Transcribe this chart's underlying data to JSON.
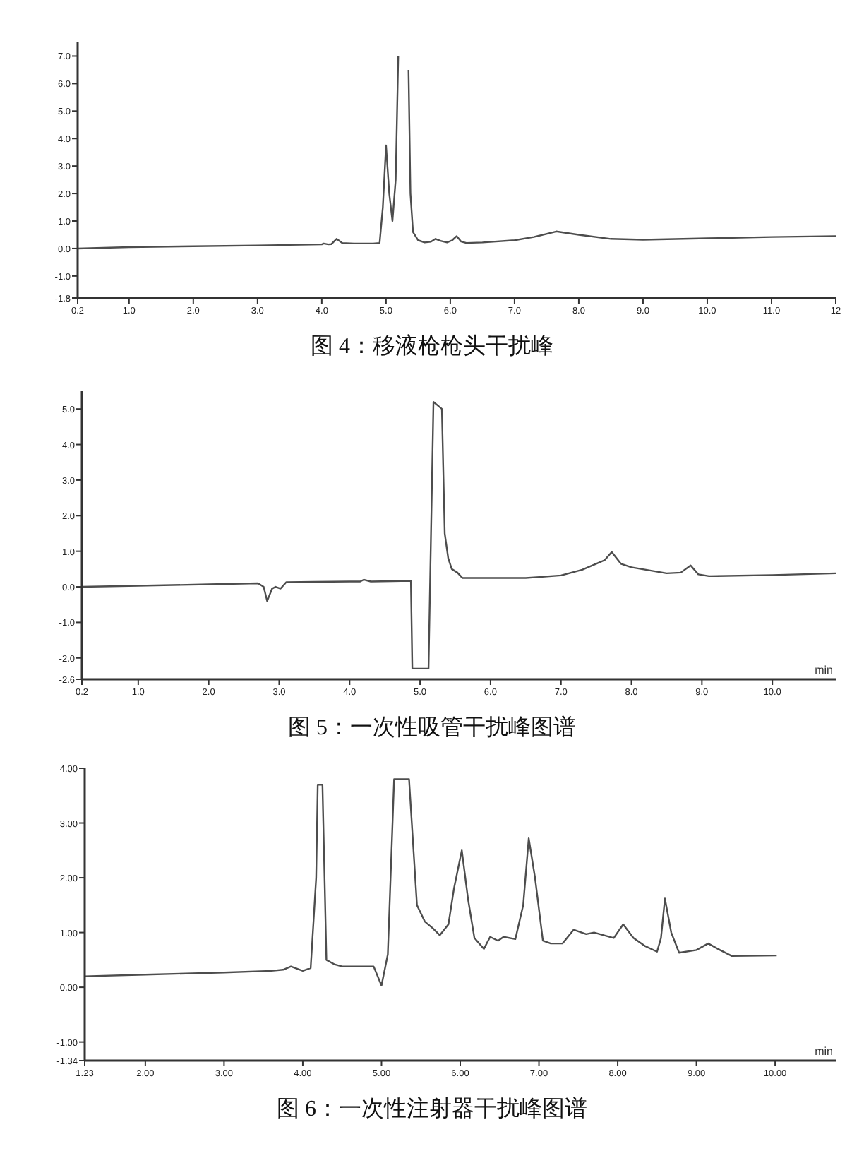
{
  "chart_data": [
    {
      "type": "line",
      "title": "图 4：移液枪枪头干扰峰",
      "xlim": [
        0.2,
        12
      ],
      "ylim": [
        -1.8,
        7.5
      ],
      "xticks": [
        0.2,
        {
          "value": 1,
          "label": "1.0"
        },
        {
          "value": 2,
          "label": "2.0"
        },
        {
          "value": 3,
          "label": "3.0"
        },
        {
          "value": 4,
          "label": "4.0"
        },
        {
          "value": 5,
          "label": "5.0"
        },
        {
          "value": 6,
          "label": "6.0"
        },
        {
          "value": 7,
          "label": "7.0"
        },
        {
          "value": 8,
          "label": "8.0"
        },
        {
          "value": 9,
          "label": "9.0"
        },
        {
          "value": 10,
          "label": "10.0"
        },
        {
          "value": 11,
          "label": "11.0"
        },
        12
      ],
      "yticks": [
        -1.8,
        {
          "value": -1,
          "label": "-1.0"
        },
        {
          "value": 0,
          "label": "0.0"
        },
        {
          "value": 1,
          "label": "1.0"
        },
        {
          "value": 2,
          "label": "2.0"
        },
        {
          "value": 3,
          "label": "3.0"
        },
        {
          "value": 4,
          "label": "4.0"
        },
        {
          "value": 5,
          "label": "5.0"
        },
        {
          "value": 6,
          "label": "6.0"
        },
        {
          "value": 7,
          "label": "7.0"
        }
      ],
      "series": [
        {
          "color": "#4d4d4d",
          "x": [
            0.2,
            1,
            2,
            3,
            4,
            4.03,
            4.1,
            4.15,
            4.23,
            4.32,
            4.5,
            4.8,
            4.9,
            4.95,
            5.0,
            5.05,
            5.1,
            5.15,
            5.19
          ],
          "values": [
            0,
            0.05,
            0.08,
            0.11,
            0.15,
            0.18,
            0.15,
            0.16,
            0.35,
            0.2,
            0.18,
            0.18,
            0.2,
            1.5,
            3.75,
            2.0,
            1.0,
            2.5,
            7.0
          ]
        },
        {
          "color": "#4d4d4d",
          "x": [
            5.35,
            5.38,
            5.42,
            5.5,
            5.6,
            5.7,
            5.77,
            5.85,
            5.95,
            6.03,
            6.1,
            6.17,
            6.25,
            6.5,
            7.0,
            7.3,
            7.65,
            8.0,
            8.5,
            9.0,
            10,
            11,
            12
          ],
          "values": [
            6.5,
            2.0,
            0.6,
            0.3,
            0.22,
            0.25,
            0.35,
            0.28,
            0.22,
            0.3,
            0.45,
            0.25,
            0.2,
            0.22,
            0.3,
            0.42,
            0.62,
            0.5,
            0.35,
            0.32,
            0.37,
            0.42,
            0.45
          ]
        }
      ]
    },
    {
      "type": "line",
      "title": "图 5：一次性吸管干扰峰图谱",
      "xlabel": "min",
      "xlim": [
        0.2,
        10.9
      ],
      "ylim": [
        -2.6,
        5.5
      ],
      "xticks": [
        0.2,
        {
          "value": 1,
          "label": "1.0"
        },
        {
          "value": 2,
          "label": "2.0"
        },
        {
          "value": 3,
          "label": "3.0"
        },
        {
          "value": 4,
          "label": "4.0"
        },
        {
          "value": 5,
          "label": "5.0"
        },
        {
          "value": 6,
          "label": "6.0"
        },
        {
          "value": 7,
          "label": "7.0"
        },
        {
          "value": 8,
          "label": "8.0"
        },
        {
          "value": 9,
          "label": "9.0"
        },
        {
          "value": 10,
          "label": "10.0"
        }
      ],
      "yticks": [
        -2.6,
        {
          "value": -2,
          "label": "-2.0"
        },
        {
          "value": -1,
          "label": "-1.0"
        },
        {
          "value": 0,
          "label": "0.0"
        },
        {
          "value": 1,
          "label": "1.0"
        },
        {
          "value": 2,
          "label": "2.0"
        },
        {
          "value": 3,
          "label": "3.0"
        },
        {
          "value": 4,
          "label": "4.0"
        },
        {
          "value": 5,
          "label": "5.0"
        }
      ],
      "x": [
        0.2,
        1,
        2,
        2.7,
        2.78,
        2.83,
        2.9,
        2.95,
        3.02,
        3.1,
        3.5,
        4.0,
        4.15,
        4.2,
        4.3,
        4.6,
        4.87,
        4.89,
        5.12,
        5.19,
        5.31,
        5.35,
        5.4,
        5.45,
        5.53,
        5.6,
        6.0,
        6.5,
        7.0,
        7.3,
        7.5,
        7.62,
        7.72,
        7.85,
        8.0,
        8.5,
        8.7,
        8.84,
        8.95,
        9.1,
        10,
        10.9
      ],
      "series": [
        {
          "color": "#4d4d4d",
          "values": [
            0,
            0.03,
            0.07,
            0.1,
            0.0,
            -0.4,
            -0.05,
            0.0,
            -0.05,
            0.13,
            0.14,
            0.15,
            0.15,
            0.2,
            0.15,
            0.16,
            0.17,
            -2.3,
            -2.3,
            5.2,
            5.0,
            1.5,
            0.8,
            0.5,
            0.4,
            0.25,
            0.25,
            0.25,
            0.32,
            0.48,
            0.65,
            0.75,
            0.98,
            0.65,
            0.55,
            0.38,
            0.4,
            0.6,
            0.35,
            0.3,
            0.33,
            0.38
          ]
        }
      ]
    },
    {
      "type": "line",
      "title": "图 6：一次性注射器干扰峰图谱",
      "xlabel": "min",
      "xlim": [
        1.23,
        10.77
      ],
      "ylim": [
        -1.34,
        4
      ],
      "xticks": [
        1.23,
        {
          "value": 2,
          "label": "2.00"
        },
        {
          "value": 3,
          "label": "3.00"
        },
        {
          "value": 4,
          "label": "4.00"
        },
        {
          "value": 5,
          "label": "5.00"
        },
        {
          "value": 6,
          "label": "6.00"
        },
        {
          "value": 7,
          "label": "7.00"
        },
        {
          "value": 8,
          "label": "8.00"
        },
        {
          "value": 9,
          "label": "9.00"
        },
        {
          "value": 10,
          "label": "10.00"
        }
      ],
      "yticks": [
        -1.34,
        {
          "value": -1,
          "label": "-1.00"
        },
        {
          "value": 0,
          "label": "0.00"
        },
        {
          "value": 1,
          "label": "1.00"
        },
        {
          "value": 2,
          "label": "2.00"
        },
        {
          "value": 3,
          "label": "3.00"
        },
        {
          "value": 4,
          "label": "4.00"
        }
      ],
      "x": [
        1.23,
        2,
        3,
        3.6,
        3.75,
        3.85,
        4.0,
        4.1,
        4.17,
        4.19,
        4.25,
        4.3,
        4.4,
        4.5,
        4.9,
        5.0,
        5.08,
        5.16,
        5.35,
        5.45,
        5.55,
        5.65,
        5.74,
        5.85,
        5.92,
        6.02,
        6.1,
        6.18,
        6.3,
        6.38,
        6.48,
        6.55,
        6.7,
        6.8,
        6.87,
        6.95,
        7.05,
        7.15,
        7.3,
        7.44,
        7.6,
        7.7,
        7.95,
        8.07,
        8.2,
        8.35,
        8.5,
        8.55,
        8.6,
        8.68,
        8.78,
        9.0,
        9.15,
        9.3,
        9.45,
        10.02
      ],
      "series": [
        {
          "color": "#4d4d4d",
          "values": [
            0.2,
            0.23,
            0.27,
            0.3,
            0.32,
            0.38,
            0.3,
            0.35,
            2.0,
            3.7,
            3.7,
            0.5,
            0.42,
            0.38,
            0.38,
            0.03,
            0.6,
            3.8,
            3.8,
            1.5,
            1.2,
            1.08,
            0.95,
            1.15,
            1.8,
            2.5,
            1.6,
            0.9,
            0.7,
            0.92,
            0.85,
            0.92,
            0.88,
            1.5,
            2.72,
            2.0,
            0.85,
            0.8,
            0.8,
            1.05,
            0.97,
            1.0,
            0.9,
            1.15,
            0.9,
            0.75,
            0.65,
            0.9,
            1.62,
            1.0,
            0.63,
            0.68,
            0.8,
            0.68,
            0.57,
            0.58
          ]
        }
      ]
    }
  ]
}
